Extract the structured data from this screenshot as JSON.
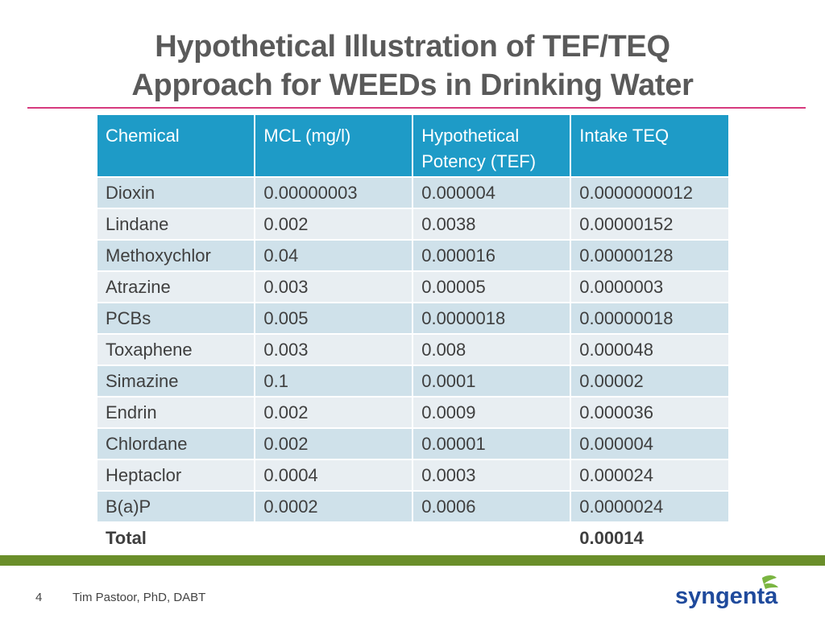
{
  "title": {
    "line1": "Hypothetical Illustration of TEF/TEQ",
    "line2": "Approach for WEEDs in Drinking Water"
  },
  "table": {
    "headers": [
      "Chemical",
      "MCL (mg/l)",
      "Hypothetical Potency (TEF)",
      "Intake TEQ"
    ],
    "rows": [
      [
        "Dioxin",
        "0.00000003",
        "0.000004",
        "0.0000000012"
      ],
      [
        "Lindane",
        "0.002",
        "0.0038",
        "0.00000152"
      ],
      [
        "Methoxychlor",
        "0.04",
        "0.000016",
        "0.00000128"
      ],
      [
        "Atrazine",
        "0.003",
        "0.00005",
        "0.0000003"
      ],
      [
        "PCBs",
        "0.005",
        "0.0000018",
        "0.00000018"
      ],
      [
        "Toxaphene",
        "0.003",
        "0.008",
        "0.000048"
      ],
      [
        "Simazine",
        "0.1",
        "0.0001",
        "0.00002"
      ],
      [
        "Endrin",
        "0.002",
        "0.0009",
        "0.000036"
      ],
      [
        "Chlordane",
        "0.002",
        "0.00001",
        "0.000004"
      ],
      [
        "Heptaclor",
        "0.0004",
        "0.0003",
        "0.000024"
      ],
      [
        "B(a)P",
        "0.0002",
        "0.0006",
        "0.0000024"
      ]
    ],
    "total": [
      "Total",
      "",
      "",
      "0.00014"
    ]
  },
  "footer": {
    "page_number": "4",
    "author": "Tim Pastoor, PhD, DABT",
    "logo_text": "syngenta"
  },
  "colors": {
    "title_text": "#5a5a5a",
    "rule": "#d63a7e",
    "header_bg": "#1e9bc7",
    "row_dark": "#cfe1ea",
    "row_light": "#e8eef2",
    "green_bar": "#6a8e2a",
    "logo_blue": "#1f4a9c",
    "logo_green": "#7ab541"
  }
}
